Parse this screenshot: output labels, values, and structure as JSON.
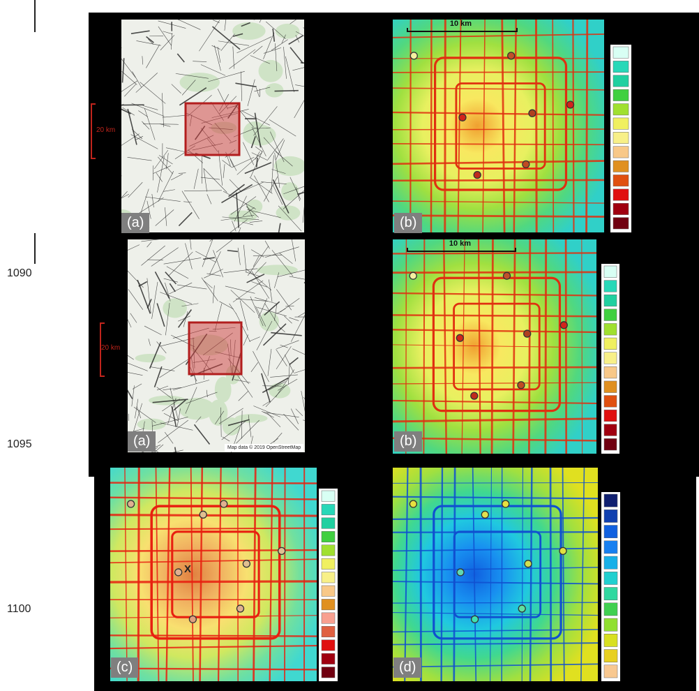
{
  "margin": {
    "line_numbers": [
      "1090",
      "1095",
      "1100"
    ]
  },
  "panels": [
    {
      "label": "(a)",
      "scale_label": "20 km"
    },
    {
      "label": "(b)",
      "scale_label": "10 km"
    },
    {
      "label": "(a)",
      "scale_label": "20 km",
      "credit": "Map data © 2019 OpenStreetMap"
    },
    {
      "label": "(b)",
      "scale_label": "10 km"
    },
    {
      "label": "(c)",
      "marker_label": "X"
    },
    {
      "label": "(d)"
    }
  ]
}
